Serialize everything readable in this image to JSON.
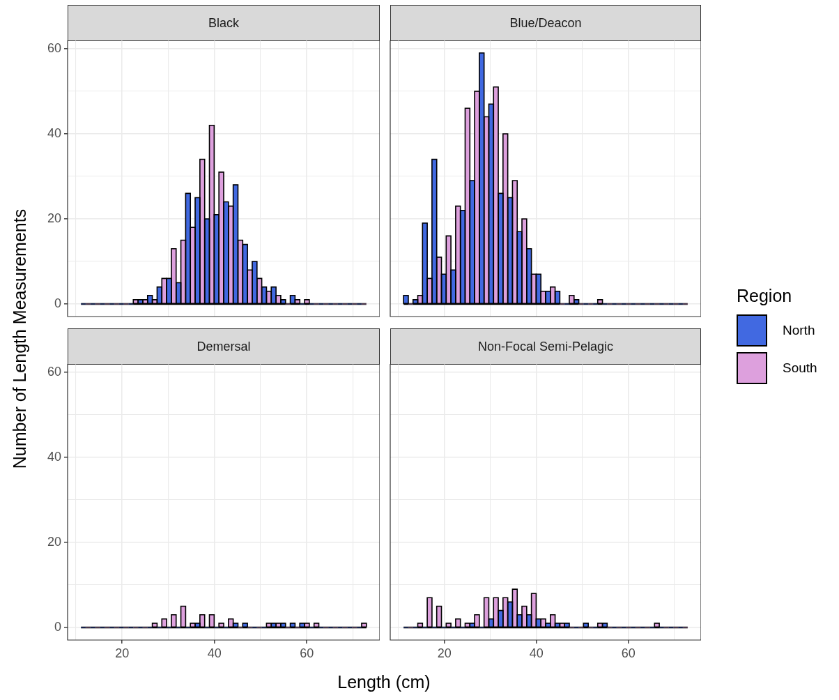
{
  "chart_data": [
    {
      "type": "histogram",
      "title": "Black",
      "ylabel": "Number of Length Measurements",
      "bins": [
        11.1,
        13.16,
        15.22,
        17.28,
        19.34,
        21.4,
        23.46,
        25.52,
        27.58,
        29.64,
        31.7,
        33.76,
        35.82,
        37.88,
        39.94,
        42,
        44.06,
        46.12,
        48.18,
        50.24,
        52.3,
        54.36,
        56.42,
        58.48,
        60.54,
        62.6,
        64.66,
        66.72,
        68.78,
        70.84,
        72.9
      ],
      "series": [
        {
          "color": "#4169e1",
          "values": [
            0,
            0,
            0,
            0,
            0,
            0,
            1,
            2,
            4,
            6,
            5,
            26,
            25,
            20,
            21,
            24,
            28,
            14,
            10,
            4,
            4,
            1,
            2,
            0,
            0,
            0,
            0,
            0,
            0,
            0
          ]
        },
        {
          "color": "#dda0dd",
          "values": [
            0,
            0,
            0,
            0,
            0,
            1,
            1,
            1,
            6,
            13,
            15,
            18,
            34,
            42,
            31,
            23,
            15,
            8,
            6,
            3,
            2,
            0,
            1,
            1,
            0,
            0,
            0,
            0,
            0,
            0
          ]
        }
      ],
      "xlim": [
        8.2,
        75.8
      ],
      "ylim": [
        -2.95,
        61.95
      ],
      "xticks": [
        {
          "value": 10,
          "label": null
        },
        20,
        {
          "value": 30,
          "label": null
        },
        40,
        {
          "value": 50,
          "label": null
        },
        60,
        {
          "value": 70,
          "label": null
        }
      ],
      "yticks": [
        0,
        {
          "value": 10,
          "label": null
        },
        20,
        {
          "value": 30,
          "label": null
        },
        40,
        {
          "value": 50,
          "label": null
        },
        60
      ],
      "grid": true,
      "tick_labels": "y"
    },
    {
      "type": "histogram",
      "title": "Blue/Deacon",
      "legend": "right",
      "legend_title": "Region",
      "bins": [
        11.1,
        13.16,
        15.22,
        17.28,
        19.34,
        21.4,
        23.46,
        25.52,
        27.58,
        29.64,
        31.7,
        33.76,
        35.82,
        37.88,
        39.94,
        42,
        44.06,
        46.12,
        48.18,
        50.24,
        52.3,
        54.36,
        56.42,
        58.48,
        60.54,
        62.6,
        64.66,
        66.72,
        68.78,
        70.84,
        72.9
      ],
      "series": [
        {
          "name": "North",
          "color": "#4169e1",
          "values": [
            2,
            1,
            19,
            34,
            7,
            8,
            22,
            29,
            59,
            47,
            26,
            25,
            17,
            13,
            7,
            3,
            3,
            0,
            1,
            0,
            0,
            0,
            0,
            0,
            0,
            0,
            0,
            0,
            0,
            0
          ]
        },
        {
          "name": "South",
          "color": "#dda0dd",
          "values": [
            0,
            2,
            6,
            11,
            16,
            23,
            46,
            50,
            44,
            51,
            40,
            29,
            20,
            7,
            3,
            4,
            0,
            2,
            0,
            0,
            1,
            0,
            0,
            0,
            0,
            0,
            0,
            0,
            0,
            0
          ]
        }
      ],
      "xlim": [
        8.2,
        75.8
      ],
      "ylim": [
        -2.95,
        61.95
      ],
      "xticks": [
        {
          "value": 10,
          "label": null
        },
        20,
        {
          "value": 30,
          "label": null
        },
        40,
        {
          "value": 50,
          "label": null
        },
        60,
        {
          "value": 70,
          "label": null
        }
      ],
      "yticks": [
        0,
        {
          "value": 10,
          "label": null
        },
        20,
        {
          "value": 30,
          "label": null
        },
        40,
        {
          "value": 50,
          "label": null
        },
        60
      ],
      "grid": true,
      "tick_labels": false
    },
    {
      "type": "histogram",
      "title": "Demersal",
      "xlabel": "Length (cm)",
      "bins": [
        11.1,
        13.16,
        15.22,
        17.28,
        19.34,
        21.4,
        23.46,
        25.52,
        27.58,
        29.64,
        31.7,
        33.76,
        35.82,
        37.88,
        39.94,
        42,
        44.06,
        46.12,
        48.18,
        50.24,
        52.3,
        54.36,
        56.42,
        58.48,
        60.54,
        62.6,
        64.66,
        66.72,
        68.78,
        70.84,
        72.9
      ],
      "series": [
        {
          "color": "#4169e1",
          "values": [
            0,
            0,
            0,
            0,
            0,
            0,
            0,
            0,
            0,
            0,
            0,
            0,
            1,
            0,
            0,
            0,
            1,
            1,
            0,
            0,
            1,
            1,
            1,
            1,
            0,
            0,
            0,
            0,
            0,
            0
          ]
        },
        {
          "color": "#dda0dd",
          "values": [
            0,
            0,
            0,
            0,
            0,
            0,
            0,
            1,
            2,
            3,
            5,
            1,
            3,
            3,
            1,
            2,
            0,
            0,
            0,
            1,
            1,
            0,
            0,
            1,
            1,
            0,
            0,
            0,
            0,
            1
          ]
        }
      ],
      "xlim": [
        8.2,
        75.8
      ],
      "ylim": [
        -2.95,
        61.95
      ],
      "xticks": [
        {
          "value": 10,
          "label": null
        },
        20,
        {
          "value": 30,
          "label": null
        },
        40,
        {
          "value": 50,
          "label": null
        },
        60,
        {
          "value": 70,
          "label": null
        }
      ],
      "yticks": [
        0,
        {
          "value": 10,
          "label": null
        },
        20,
        {
          "value": 30,
          "label": null
        },
        40,
        {
          "value": 50,
          "label": null
        },
        60
      ],
      "grid": true
    },
    {
      "type": "histogram",
      "title": "Non-Focal Semi-Pelagic",
      "bins": [
        11.1,
        13.16,
        15.22,
        17.28,
        19.34,
        21.4,
        23.46,
        25.52,
        27.58,
        29.64,
        31.7,
        33.76,
        35.82,
        37.88,
        39.94,
        42,
        44.06,
        46.12,
        48.18,
        50.24,
        52.3,
        54.36,
        56.42,
        58.48,
        60.54,
        62.6,
        64.66,
        66.72,
        68.78,
        70.84,
        72.9
      ],
      "series": [
        {
          "color": "#4169e1",
          "values": [
            0,
            0,
            0,
            0,
            0,
            0,
            0,
            1,
            0,
            2,
            4,
            6,
            3,
            3,
            2,
            1,
            1,
            1,
            0,
            1,
            0,
            1,
            0,
            0,
            0,
            0,
            0,
            0,
            0,
            0
          ]
        },
        {
          "color": "#dda0dd",
          "values": [
            0,
            1,
            7,
            5,
            1,
            2,
            1,
            3,
            7,
            7,
            7,
            9,
            5,
            8,
            2,
            3,
            1,
            0,
            0,
            0,
            1,
            0,
            0,
            0,
            0,
            0,
            1,
            0,
            0,
            0
          ]
        }
      ],
      "xlim": [
        8.2,
        75.8
      ],
      "ylim": [
        -2.95,
        61.95
      ],
      "xticks": [
        {
          "value": 10,
          "label": null
        },
        20,
        {
          "value": 30,
          "label": null
        },
        40,
        {
          "value": 50,
          "label": null
        },
        60,
        {
          "value": 70,
          "label": null
        }
      ],
      "yticks": [
        0,
        {
          "value": 10,
          "label": null
        },
        20,
        {
          "value": 30,
          "label": null
        },
        40,
        {
          "value": 50,
          "label": null
        },
        60
      ],
      "grid": true,
      "tick_labels": "x"
    }
  ]
}
